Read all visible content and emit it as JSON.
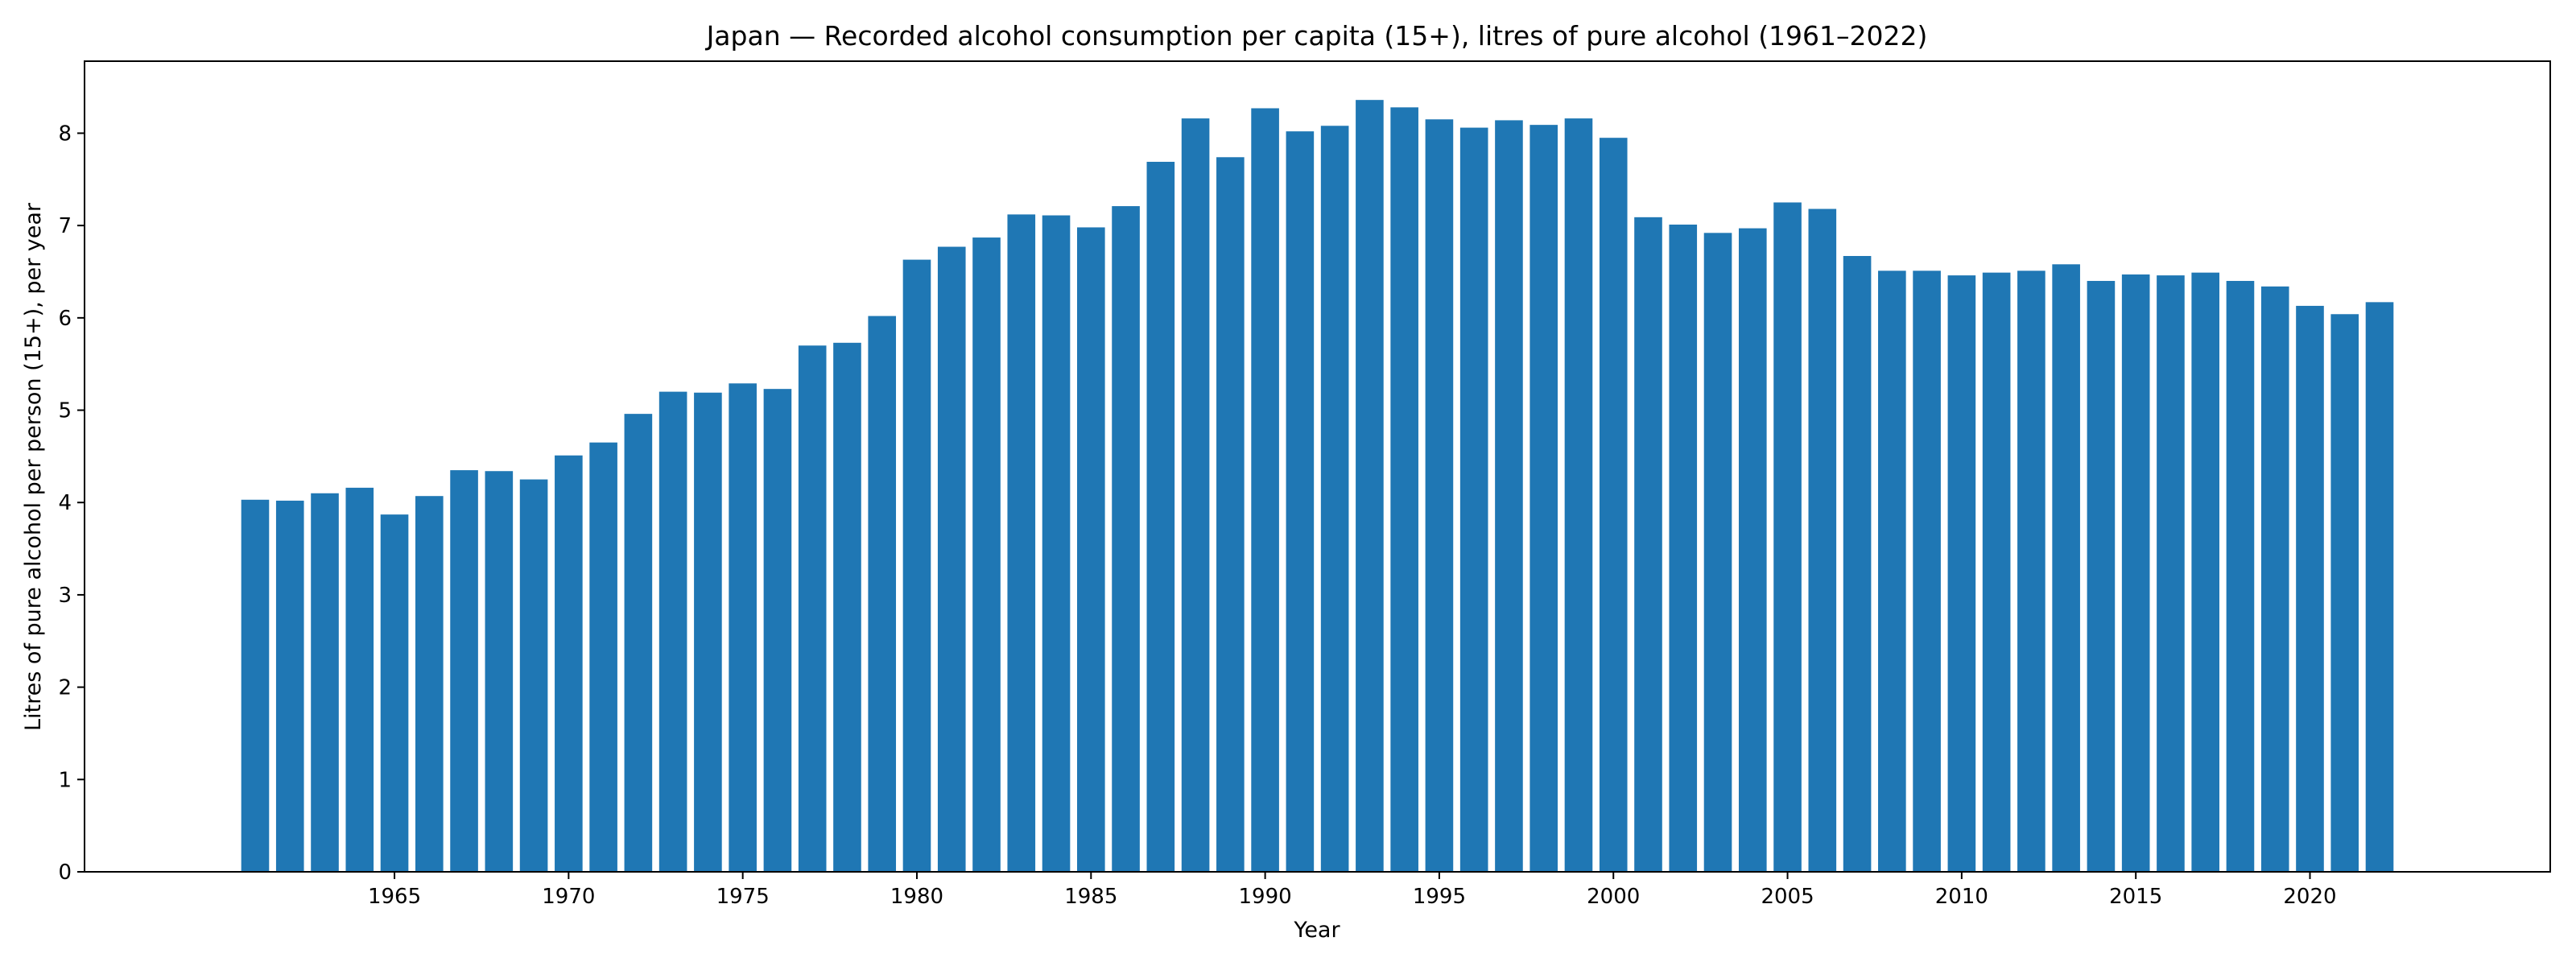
{
  "chart_data": {
    "type": "bar",
    "title": "Japan — Recorded alcohol consumption per capita (15+), litres of pure alcohol (1961–2022)",
    "xlabel": "Year",
    "ylabel": "Litres of pure alcohol per person (15+), per year",
    "xlim": [
      1956.1,
      2026.9
    ],
    "ylim": [
      0,
      8.78
    ],
    "xticks": [
      1965,
      1970,
      1975,
      1980,
      1985,
      1990,
      1995,
      2000,
      2005,
      2010,
      2015,
      2020
    ],
    "yticks": [
      0,
      1,
      2,
      3,
      4,
      5,
      6,
      7,
      8
    ],
    "grid": false,
    "legend": "none",
    "bar_color": "#1f77b4",
    "x": [
      1961,
      1962,
      1963,
      1964,
      1965,
      1966,
      1967,
      1968,
      1969,
      1970,
      1971,
      1972,
      1973,
      1974,
      1975,
      1976,
      1977,
      1978,
      1979,
      1980,
      1981,
      1982,
      1983,
      1984,
      1985,
      1986,
      1987,
      1988,
      1989,
      1990,
      1991,
      1992,
      1993,
      1994,
      1995,
      1996,
      1997,
      1998,
      1999,
      2000,
      2001,
      2002,
      2003,
      2004,
      2005,
      2006,
      2007,
      2008,
      2009,
      2010,
      2011,
      2012,
      2013,
      2014,
      2015,
      2016,
      2017,
      2018,
      2019,
      2020,
      2021,
      2022
    ],
    "values": [
      4.03,
      4.02,
      4.1,
      4.16,
      3.87,
      4.07,
      4.35,
      4.34,
      4.25,
      4.51,
      4.65,
      4.96,
      5.2,
      5.19,
      5.29,
      5.23,
      5.7,
      5.73,
      6.02,
      6.63,
      6.77,
      6.87,
      7.12,
      7.11,
      6.98,
      7.21,
      7.69,
      8.16,
      7.74,
      8.27,
      8.02,
      8.08,
      8.36,
      8.28,
      8.15,
      8.06,
      8.14,
      8.09,
      8.16,
      7.95,
      7.09,
      7.01,
      6.92,
      6.97,
      7.25,
      7.18,
      6.67,
      6.51,
      6.51,
      6.46,
      6.49,
      6.51,
      6.58,
      6.4,
      6.47,
      6.46,
      6.49,
      6.4,
      6.34,
      6.13,
      6.04,
      6.17
    ]
  }
}
